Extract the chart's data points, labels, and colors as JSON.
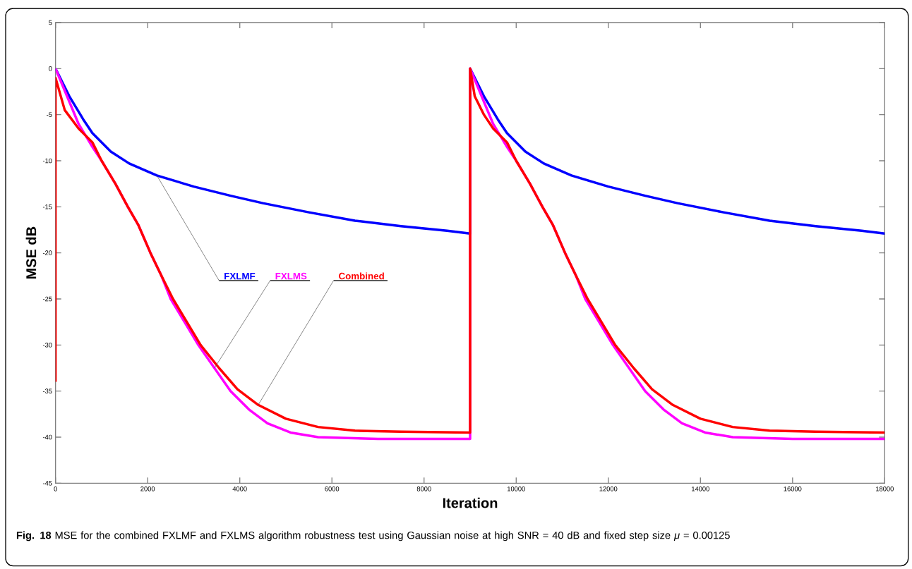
{
  "chart_data": {
    "type": "line",
    "xlabel": "Iteration",
    "ylabel": "MSE dB",
    "xlim": [
      0,
      18000
    ],
    "ylim": [
      -45,
      5
    ],
    "xticks": [
      0,
      2000,
      4000,
      6000,
      8000,
      10000,
      12000,
      14000,
      16000,
      18000
    ],
    "yticks": [
      -45,
      -40,
      -35,
      -30,
      -25,
      -20,
      -15,
      -10,
      -5,
      0,
      5
    ],
    "series": [
      {
        "name": "FXLMF",
        "color": "#0000ff",
        "x": [
          0,
          300,
          600,
          800,
          1200,
          1600,
          2200,
          3000,
          3800,
          4500,
          5500,
          6500,
          7500,
          8500,
          9000,
          9000,
          9300,
          9600,
          9800,
          10200,
          10600,
          11200,
          12000,
          12800,
          13500,
          14500,
          15500,
          16500,
          17500,
          18000
        ],
        "values": [
          0,
          -3,
          -5.5,
          -7,
          -9,
          -10.3,
          -11.6,
          -12.8,
          -13.8,
          -14.6,
          -15.6,
          -16.5,
          -17.1,
          -17.6,
          -17.9,
          0,
          -3,
          -5.5,
          -7,
          -9,
          -10.3,
          -11.6,
          -12.8,
          -13.8,
          -14.6,
          -15.6,
          -16.5,
          -17.1,
          -17.6,
          -17.9
        ]
      },
      {
        "name": "FXLMS",
        "color": "#ff00ff",
        "x": [
          0,
          250,
          500,
          800,
          1000,
          1300,
          1570,
          1800,
          2060,
          2300,
          2500,
          2800,
          3100,
          3450,
          3800,
          4200,
          4600,
          5100,
          5700,
          7000,
          8000,
          9000,
          9000,
          9250,
          9500,
          9800,
          10000,
          10300,
          10570,
          10800,
          11060,
          11300,
          11500,
          11800,
          12100,
          12450,
          12800,
          13200,
          13600,
          14100,
          14700,
          16000,
          17000,
          18000
        ],
        "values": [
          0,
          -3,
          -6,
          -8.5,
          -10,
          -12.5,
          -15,
          -17,
          -20,
          -22.5,
          -25,
          -27.5,
          -30,
          -32.5,
          -35,
          -37,
          -38.5,
          -39.5,
          -40,
          -40.2,
          -40.2,
          -40.2,
          0,
          -3,
          -6,
          -8.5,
          -10,
          -12.5,
          -15,
          -17,
          -20,
          -22.5,
          -25,
          -27.5,
          -30,
          -32.5,
          -35,
          -37,
          -38.5,
          -39.5,
          -40,
          -40.2,
          -40.2,
          -40.2
        ]
      },
      {
        "name": "Combined",
        "color": "#ff0000",
        "x": [
          0,
          0,
          200,
          500,
          800,
          1000,
          1300,
          1570,
          1800,
          2060,
          2300,
          2550,
          2850,
          3150,
          3550,
          3950,
          4400,
          5000,
          5700,
          6500,
          7500,
          9000,
          9000,
          9100,
          9300,
          9500,
          9800,
          10000,
          10300,
          10570,
          10800,
          11060,
          11300,
          11550,
          11850,
          12150,
          12550,
          12950,
          13400,
          14000,
          14700,
          15500,
          16500,
          18000
        ],
        "values": [
          -34,
          -1,
          -4.5,
          -6.5,
          -8,
          -10,
          -12.5,
          -15,
          -17,
          -20,
          -22.5,
          -25,
          -27.5,
          -30,
          -32.5,
          -34.8,
          -36.5,
          -38,
          -38.9,
          -39.3,
          -39.4,
          -39.5,
          0,
          -3,
          -5,
          -6.5,
          -8,
          -10,
          -12.5,
          -15,
          -17,
          -20,
          -22.5,
          -25,
          -27.5,
          -30,
          -32.5,
          -34.8,
          -36.5,
          -38,
          -38.9,
          -39.3,
          -39.4,
          -39.5
        ]
      }
    ],
    "annotations": [
      "**Fig. 18** MSE for the combined FXLMF and FXLMS algorithm robustness test using Gaussian noise at high SNR = 40 dB and fixed step size *μ* = 0.00125"
    ]
  }
}
